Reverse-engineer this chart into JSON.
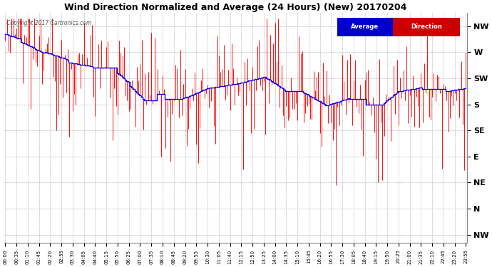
{
  "title": "Wind Direction Normalized and Average (24 Hours) (New) 20170204",
  "copyright": "Copyright 2017 Cartronics.com",
  "ytick_labels": [
    "NW",
    "W",
    "SW",
    "S",
    "SE",
    "E",
    "NE",
    "N",
    "NW"
  ],
  "ytick_values": [
    8,
    7,
    6,
    5,
    4,
    3,
    2,
    1,
    0
  ],
  "ylim": [
    -0.3,
    8.5
  ],
  "background_color": "#ffffff",
  "grid_color": "#999999",
  "bar_color": "#ff0000",
  "avg_color": "#0000ff",
  "legend_avg_bg": "#0000cc",
  "legend_dir_bg": "#cc0000",
  "legend_text_color": "#ffffff",
  "tick_step_minutes": 35,
  "n_points": 288,
  "figwidth": 6.9,
  "figheight": 3.75,
  "dpi": 100
}
